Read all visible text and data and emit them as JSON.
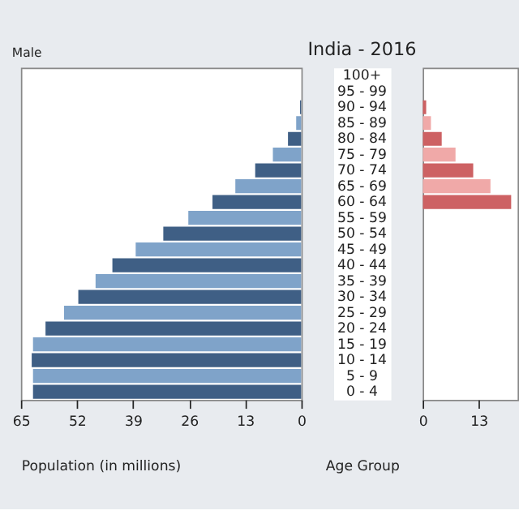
{
  "chart_data": [
    {
      "type": "bar",
      "orientation": "horizontal",
      "title": "India - 2016",
      "xlabel": "Population (in millions)",
      "ylabel": "Age Group",
      "categories": [
        "100+",
        "95 - 99",
        "90 - 94",
        "85 - 89",
        "80 - 84",
        "75 - 79",
        "70 - 74",
        "65 - 69",
        "60 - 64",
        "55 - 59",
        "50 - 54",
        "45 - 49",
        "40 - 44",
        "35 - 39",
        "30 - 34",
        "25 - 29",
        "20 - 24",
        "15 - 19",
        "10 - 14",
        "5 - 9",
        "0 - 4"
      ],
      "series": [
        {
          "name": "Male",
          "values": [
            null,
            null,
            0.3,
            1.2,
            3.1,
            6.6,
            10.7,
            15.3,
            20.6,
            26.2,
            32.0,
            38.4,
            43.8,
            47.7,
            51.7,
            55.0,
            59.3,
            62.2,
            62.5,
            62.2,
            62.2
          ]
        }
      ],
      "colors": [
        "#3f5f85",
        "#7fa3c9",
        "#3f5f85",
        "#7fa3c9",
        "#3f5f85",
        "#7fa3c9",
        "#3f5f85",
        "#7fa3c9",
        "#3f5f85",
        "#7fa3c9",
        "#3f5f85",
        "#7fa3c9",
        "#3f5f85",
        "#7fa3c9",
        "#3f5f85",
        "#7fa3c9",
        "#3f5f85",
        "#7fa3c9",
        "#3f5f85",
        "#7fa3c9",
        "#3f5f85"
      ],
      "xlim": [
        65,
        0
      ],
      "xticks": [
        65,
        52,
        39,
        26,
        13,
        0
      ],
      "grid": false
    },
    {
      "type": "bar",
      "orientation": "horizontal",
      "categories": [
        null,
        null,
        null,
        null,
        null,
        null,
        null,
        null,
        null,
        null,
        null,
        null,
        null,
        null,
        null,
        null,
        null,
        null,
        null,
        null,
        null
      ],
      "series": [
        {
          "values": [
            null,
            null,
            0.8,
            1.9,
            4.4,
            7.6,
            11.7,
            15.7,
            20.5,
            null,
            null,
            null,
            null,
            null,
            null,
            null,
            null,
            null,
            null,
            null,
            null
          ]
        }
      ],
      "colors": [
        "#cd6163",
        "#f0a9a8",
        "#cd6163",
        "#f0a9a8",
        "#cd6163",
        "#f0a9a8",
        "#cd6163",
        "#f0a9a8",
        "#cd6163",
        "#f0a9a8",
        "#cd6163",
        "#f0a9a8",
        "#cd6163",
        "#f0a9a8",
        "#cd6163",
        "#f0a9a8",
        "#cd6163",
        "#f0a9a8",
        "#cd6163",
        "#f0a9a8",
        "#cd6163"
      ],
      "xlim": [
        0,
        22
      ],
      "xticks": [
        0,
        13
      ],
      "grid": false
    }
  ]
}
